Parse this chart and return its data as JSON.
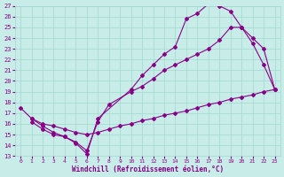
{
  "xlabel": "Windchill (Refroidissement éolien,°C)",
  "bg_color": "#c8ece8",
  "line_color": "#880088",
  "xlim": [
    -0.5,
    23.5
  ],
  "ylim": [
    13,
    27
  ],
  "xticks": [
    0,
    1,
    2,
    3,
    4,
    5,
    6,
    7,
    8,
    9,
    10,
    11,
    12,
    13,
    14,
    15,
    16,
    17,
    18,
    19,
    20,
    21,
    22,
    23
  ],
  "yticks": [
    13,
    14,
    15,
    16,
    17,
    18,
    19,
    20,
    21,
    22,
    23,
    24,
    25,
    26,
    27
  ],
  "grid_color": "#a0d8d0",
  "series": [
    {
      "x": [
        1,
        2,
        3,
        4,
        5,
        6,
        7,
        10,
        11,
        12,
        13,
        14,
        15,
        16,
        17,
        18,
        19,
        20,
        21,
        22,
        23
      ],
      "y": [
        16.2,
        15.5,
        15.0,
        14.8,
        14.2,
        13.2,
        16.5,
        19.2,
        20.5,
        21.5,
        22.5,
        23.2,
        25.8,
        26.3,
        27.2,
        27.0,
        26.5,
        25.0,
        23.5,
        21.5,
        19.2
      ]
    },
    {
      "x": [
        1,
        2,
        3,
        4,
        5,
        6,
        7,
        8,
        10,
        11,
        12,
        13,
        14,
        15,
        16,
        17,
        18,
        19,
        20,
        21,
        22,
        23
      ],
      "y": [
        16.5,
        15.8,
        15.2,
        14.8,
        14.3,
        13.5,
        16.2,
        17.8,
        19.0,
        19.5,
        20.2,
        21.0,
        21.5,
        22.0,
        22.5,
        23.0,
        23.8,
        25.0,
        25.0,
        24.0,
        23.0,
        19.2
      ]
    },
    {
      "x": [
        0,
        1,
        2,
        3,
        4,
        5,
        6,
        7,
        8,
        9,
        10,
        11,
        12,
        13,
        14,
        15,
        16,
        17,
        18,
        19,
        20,
        21,
        22,
        23
      ],
      "y": [
        17.5,
        16.5,
        16.0,
        15.8,
        15.5,
        15.2,
        15.0,
        15.2,
        15.5,
        15.8,
        16.0,
        16.3,
        16.5,
        16.8,
        17.0,
        17.2,
        17.5,
        17.8,
        18.0,
        18.3,
        18.5,
        18.7,
        19.0,
        19.2
      ]
    }
  ]
}
